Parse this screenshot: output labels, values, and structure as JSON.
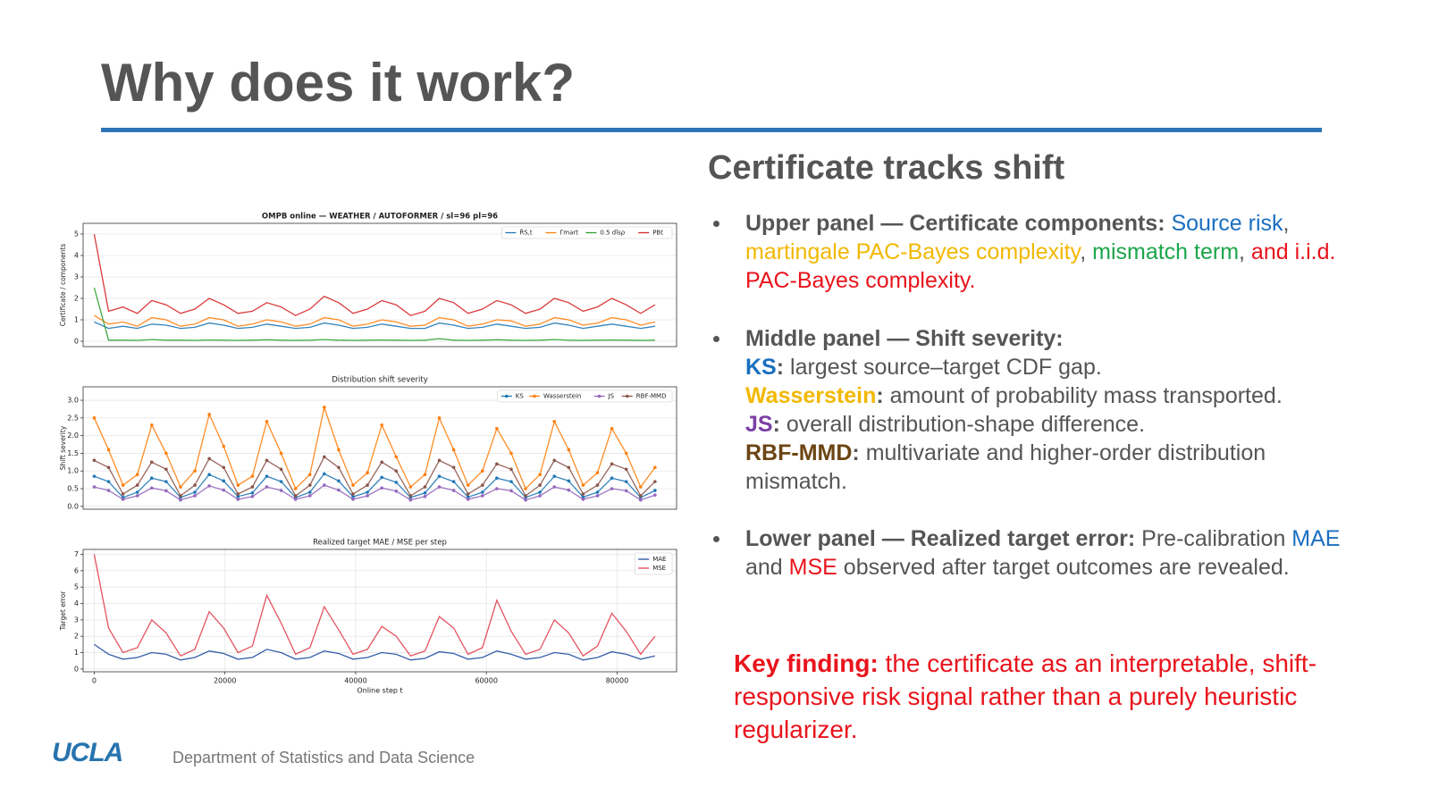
{
  "slide": {
    "title": "Why does it work?",
    "subtitle": "Certificate tracks shift",
    "bullets": [
      {
        "lines": [
          [
            {
              "text": "Upper panel — Certificate components:",
              "bold": true,
              "color": "#555555"
            },
            {
              "text": " Source risk",
              "color": "#1a6fc0"
            },
            {
              "text": ",",
              "color": "#555555"
            }
          ],
          [
            {
              "text": "martingale PAC-Bayes complexity",
              "color": "#f2b800"
            },
            {
              "text": ",",
              "color": "#555555"
            },
            {
              "text": " mismatch term",
              "color": "#1aa64a"
            },
            {
              "text": ",",
              "color": "#555555"
            },
            {
              "text": " and i.i.d.",
              "color": "#e8141c"
            }
          ],
          [
            {
              "text": "PAC-Bayes complexity.",
              "color": "#e8141c"
            }
          ]
        ]
      },
      {
        "lines": [
          [
            {
              "text": "Middle panel — Shift severity:",
              "bold": true,
              "color": "#555555"
            }
          ],
          [
            {
              "text": "KS",
              "bold": true,
              "color": "#1a6fc0"
            },
            {
              "text": ":",
              "bold": true,
              "color": "#555555"
            },
            {
              "text": " largest source–target CDF gap.",
              "color": "#555555"
            }
          ],
          [
            {
              "text": "Wasserstein",
              "bold": true,
              "color": "#f2b800"
            },
            {
              "text": ":",
              "bold": true,
              "color": "#555555"
            },
            {
              "text": " amount of probability mass transported.",
              "color": "#555555"
            }
          ],
          [
            {
              "text": "JS",
              "bold": true,
              "color": "#7b3fa6"
            },
            {
              "text": ":",
              "bold": true,
              "color": "#555555"
            },
            {
              "text": " overall distribution-shape difference.",
              "color": "#555555"
            }
          ],
          [
            {
              "text": "RBF-MMD",
              "bold": true,
              "color": "#6b4513"
            },
            {
              "text": ":",
              "bold": true,
              "color": "#555555"
            },
            {
              "text": " multivariate and higher-order distribution",
              "color": "#555555"
            }
          ],
          [
            {
              "text": "mismatch.",
              "color": "#555555"
            }
          ]
        ]
      },
      {
        "lines": [
          [
            {
              "text": "Lower panel — Realized target error:",
              "bold": true,
              "color": "#555555"
            },
            {
              "text": " Pre-calibration ",
              "color": "#555555"
            },
            {
              "text": "MAE",
              "color": "#1a6fc0"
            }
          ],
          [
            {
              "text": "and ",
              "color": "#555555"
            },
            {
              "text": "MSE",
              "color": "#e8141c"
            },
            {
              "text": " observed after target outcomes are revealed.",
              "color": "#555555"
            }
          ]
        ]
      }
    ],
    "key_finding": {
      "lines": [
        [
          {
            "text": "Key finding:",
            "bold": true,
            "color": "#e8141c"
          },
          {
            "text": " the certificate as an interpretable, shift-",
            "color": "#e8141c"
          }
        ],
        [
          {
            "text": "responsive risk signal rather than a purely heuristic",
            "color": "#e8141c"
          }
        ],
        [
          {
            "text": "regularizer.",
            "color": "#e8141c"
          }
        ]
      ]
    },
    "footer": {
      "logo": "UCLA",
      "department": "Department of Statistics and Data Science"
    }
  },
  "chart_data": [
    {
      "type": "line",
      "title": "OMPB online — WEATHER / AUTOFORMER / sl=96 pl=96",
      "title_bold": true,
      "y_label": "Certificate / components",
      "grid": true,
      "legend": "upper right",
      "legend_ncol": 4,
      "xlim": [
        -1700,
        89100
      ],
      "ylim": [
        -0.25,
        5.5
      ],
      "yticks": [
        0,
        1,
        2,
        3,
        4,
        5
      ],
      "x": [
        0,
        2200,
        4400,
        6600,
        8800,
        11000,
        13200,
        15400,
        17600,
        19800,
        22000,
        24200,
        26400,
        28600,
        30800,
        33000,
        35200,
        37400,
        39600,
        41800,
        44000,
        46200,
        48400,
        50600,
        52800,
        55000,
        57200,
        59400,
        61600,
        63800,
        66000,
        68200,
        70400,
        72600,
        74800,
        77000,
        79200,
        81400,
        83600,
        85800
      ],
      "series": [
        {
          "name": "R̂S,t",
          "color": "#1f77b4",
          "values": [
            0.9,
            0.6,
            0.7,
            0.6,
            0.8,
            0.75,
            0.6,
            0.65,
            0.85,
            0.75,
            0.6,
            0.65,
            0.8,
            0.7,
            0.6,
            0.65,
            0.85,
            0.75,
            0.6,
            0.65,
            0.8,
            0.7,
            0.6,
            0.6,
            0.85,
            0.75,
            0.6,
            0.65,
            0.8,
            0.7,
            0.6,
            0.65,
            0.85,
            0.75,
            0.6,
            0.7,
            0.8,
            0.7,
            0.6,
            0.7
          ]
        },
        {
          "name": "Γmart",
          "color": "#ff7f0e",
          "values": [
            1.2,
            0.8,
            0.9,
            0.7,
            1.1,
            1.0,
            0.7,
            0.8,
            1.1,
            1.0,
            0.7,
            0.8,
            1.0,
            0.9,
            0.7,
            0.8,
            1.1,
            1.0,
            0.7,
            0.8,
            1.0,
            0.9,
            0.7,
            0.75,
            1.1,
            1.0,
            0.7,
            0.8,
            1.0,
            0.95,
            0.7,
            0.8,
            1.1,
            1.0,
            0.75,
            0.85,
            1.1,
            1.0,
            0.75,
            0.9
          ]
        },
        {
          "name": "0.5 dîsρ",
          "color": "#2ca02c",
          "values": [
            2.5,
            0.05,
            0.05,
            0.04,
            0.08,
            0.05,
            0.05,
            0.04,
            0.06,
            0.05,
            0.04,
            0.05,
            0.07,
            0.05,
            0.04,
            0.05,
            0.08,
            0.05,
            0.04,
            0.05,
            0.06,
            0.05,
            0.04,
            0.05,
            0.12,
            0.05,
            0.04,
            0.05,
            0.07,
            0.05,
            0.04,
            0.05,
            0.08,
            0.05,
            0.04,
            0.05,
            0.06,
            0.05,
            0.04,
            0.05
          ]
        },
        {
          "name": "PBt",
          "color": "#d62728",
          "values": [
            5.0,
            1.4,
            1.6,
            1.3,
            1.9,
            1.7,
            1.3,
            1.5,
            2.0,
            1.7,
            1.3,
            1.4,
            1.8,
            1.6,
            1.2,
            1.5,
            2.1,
            1.8,
            1.3,
            1.5,
            1.9,
            1.7,
            1.2,
            1.4,
            2.0,
            1.8,
            1.3,
            1.5,
            1.9,
            1.7,
            1.3,
            1.5,
            2.0,
            1.8,
            1.4,
            1.6,
            2.0,
            1.7,
            1.3,
            1.7
          ]
        }
      ]
    },
    {
      "type": "line",
      "title": "Distribution shift severity",
      "y_label": "Shift severity",
      "grid": true,
      "legend": "upper right",
      "legend_ncol": 4,
      "marker": "o",
      "xlim": [
        -1700,
        89100
      ],
      "ylim": [
        -0.08,
        3.38
      ],
      "yticks": [
        {
          "value": 0,
          "label": "0.0"
        },
        0.5,
        {
          "value": 1,
          "label": "1.0"
        },
        1.5,
        {
          "value": 2,
          "label": "2.0"
        },
        2.5,
        {
          "value": 3,
          "label": "3.0"
        }
      ],
      "x": [
        0,
        2200,
        4400,
        6600,
        8800,
        11000,
        13200,
        15400,
        17600,
        19800,
        22000,
        24200,
        26400,
        28600,
        30800,
        33000,
        35200,
        37400,
        39600,
        41800,
        44000,
        46200,
        48400,
        50600,
        52800,
        55000,
        57200,
        59400,
        61600,
        63800,
        66000,
        68200,
        70400,
        72600,
        74800,
        77000,
        79200,
        81400,
        83600,
        85800
      ],
      "series": [
        {
          "name": "KS",
          "color": "#1f77b4",
          "values": [
            0.85,
            0.7,
            0.25,
            0.4,
            0.8,
            0.7,
            0.25,
            0.4,
            0.9,
            0.72,
            0.28,
            0.38,
            0.85,
            0.7,
            0.25,
            0.4,
            0.92,
            0.72,
            0.27,
            0.4,
            0.82,
            0.68,
            0.25,
            0.38,
            0.85,
            0.7,
            0.26,
            0.4,
            0.8,
            0.7,
            0.25,
            0.4,
            0.85,
            0.72,
            0.26,
            0.4,
            0.8,
            0.7,
            0.25,
            0.45
          ]
        },
        {
          "name": "Wasserstein",
          "color": "#ff7f0e",
          "values": [
            2.5,
            1.6,
            0.6,
            0.9,
            2.3,
            1.5,
            0.55,
            1.0,
            2.6,
            1.7,
            0.6,
            0.85,
            2.4,
            1.5,
            0.5,
            0.9,
            2.8,
            1.6,
            0.6,
            0.95,
            2.3,
            1.4,
            0.55,
            0.9,
            2.5,
            1.6,
            0.6,
            1.0,
            2.2,
            1.5,
            0.5,
            0.9,
            2.4,
            1.6,
            0.6,
            0.95,
            2.2,
            1.5,
            0.55,
            1.1
          ]
        },
        {
          "name": "JS",
          "color": "#9467bd",
          "values": [
            0.55,
            0.45,
            0.2,
            0.3,
            0.52,
            0.44,
            0.18,
            0.3,
            0.58,
            0.46,
            0.2,
            0.28,
            0.55,
            0.45,
            0.2,
            0.3,
            0.6,
            0.46,
            0.2,
            0.3,
            0.52,
            0.43,
            0.18,
            0.28,
            0.55,
            0.45,
            0.2,
            0.3,
            0.5,
            0.44,
            0.18,
            0.3,
            0.55,
            0.46,
            0.2,
            0.3,
            0.5,
            0.44,
            0.18,
            0.32
          ]
        },
        {
          "name": "RBF-MMD",
          "color": "#8c564b",
          "values": [
            1.3,
            1.1,
            0.35,
            0.6,
            1.25,
            1.05,
            0.3,
            0.6,
            1.35,
            1.1,
            0.35,
            0.55,
            1.3,
            1.05,
            0.3,
            0.6,
            1.4,
            1.1,
            0.35,
            0.6,
            1.25,
            1.0,
            0.3,
            0.55,
            1.3,
            1.1,
            0.35,
            0.6,
            1.2,
            1.05,
            0.3,
            0.6,
            1.3,
            1.1,
            0.35,
            0.6,
            1.2,
            1.05,
            0.3,
            0.7
          ]
        }
      ]
    },
    {
      "type": "line",
      "title": "Realized target MAE / MSE per step",
      "y_label": "Target error",
      "x_label": "Online step t",
      "grid": true,
      "legend": "upper right",
      "legend_ncol": 1,
      "xlim": [
        -1700,
        89100
      ],
      "ylim": [
        -0.17,
        7.3
      ],
      "yticks": [
        0,
        1,
        2,
        3,
        4,
        5,
        6,
        7
      ],
      "xticks": [
        0,
        20000,
        40000,
        60000,
        80000
      ],
      "x": [
        0,
        2200,
        4400,
        6600,
        8800,
        11000,
        13200,
        15400,
        17600,
        19800,
        22000,
        24200,
        26400,
        28600,
        30800,
        33000,
        35200,
        37400,
        39600,
        41800,
        44000,
        46200,
        48400,
        50600,
        52800,
        55000,
        57200,
        59400,
        61600,
        63800,
        66000,
        68200,
        70400,
        72600,
        74800,
        77000,
        79200,
        81400,
        83600,
        85800
      ],
      "series": [
        {
          "name": "MAE",
          "color": "#1f4e9e",
          "values": [
            1.5,
            0.9,
            0.6,
            0.7,
            1.0,
            0.9,
            0.55,
            0.7,
            1.1,
            0.95,
            0.6,
            0.7,
            1.2,
            1.0,
            0.6,
            0.7,
            1.1,
            0.95,
            0.6,
            0.7,
            1.0,
            0.9,
            0.55,
            0.65,
            1.05,
            0.95,
            0.6,
            0.7,
            1.1,
            0.9,
            0.6,
            0.7,
            1.0,
            0.9,
            0.55,
            0.7,
            1.05,
            0.9,
            0.6,
            0.8
          ]
        },
        {
          "name": "MSE",
          "color": "#e0404f",
          "values": [
            7.0,
            2.5,
            1.0,
            1.3,
            3.0,
            2.2,
            0.8,
            1.2,
            3.5,
            2.5,
            1.0,
            1.4,
            4.5,
            2.8,
            0.9,
            1.3,
            3.8,
            2.4,
            0.9,
            1.2,
            2.6,
            2.0,
            0.8,
            1.1,
            3.2,
            2.5,
            0.9,
            1.3,
            4.2,
            2.3,
            0.9,
            1.2,
            3.0,
            2.2,
            0.8,
            1.4,
            3.4,
            2.3,
            0.9,
            2.0
          ]
        }
      ]
    }
  ]
}
